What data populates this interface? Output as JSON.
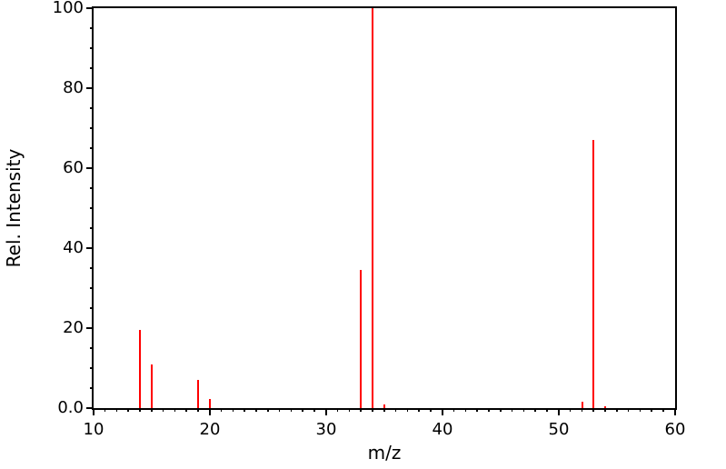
{
  "chart_data": {
    "type": "bar",
    "subtype": "mass-spectrum-stick-plot",
    "title": "",
    "xlabel": "m/z",
    "ylabel": "Rel. Intensity",
    "xlim": [
      10,
      60
    ],
    "ylim": [
      0,
      100
    ],
    "grid": false,
    "legend": false,
    "background_color": "#ffffff",
    "axis_color": "#000000",
    "bar_color": "#ff0000",
    "x_major_ticks": [
      10,
      20,
      30,
      40,
      50,
      60
    ],
    "x_tick_labels": [
      "10",
      "20",
      "30",
      "40",
      "50",
      "60"
    ],
    "x_minor_tick_step": 1,
    "y_major_ticks": [
      0,
      20,
      40,
      60,
      80,
      100
    ],
    "y_tick_labels": [
      "0.0",
      "20",
      "40",
      "60",
      "80",
      "100"
    ],
    "y_minor_tick_step": 5,
    "series": [
      {
        "name": "relative-intensity",
        "color": "#ff0000",
        "points": [
          {
            "mz": 14,
            "intensity": 19.5
          },
          {
            "mz": 15,
            "intensity": 10.8
          },
          {
            "mz": 19,
            "intensity": 7.0
          },
          {
            "mz": 20,
            "intensity": 2.3
          },
          {
            "mz": 33,
            "intensity": 34.5
          },
          {
            "mz": 34,
            "intensity": 100
          },
          {
            "mz": 35,
            "intensity": 0.8
          },
          {
            "mz": 52,
            "intensity": 1.6
          },
          {
            "mz": 53,
            "intensity": 67
          },
          {
            "mz": 54,
            "intensity": 0.5
          }
        ]
      }
    ]
  }
}
